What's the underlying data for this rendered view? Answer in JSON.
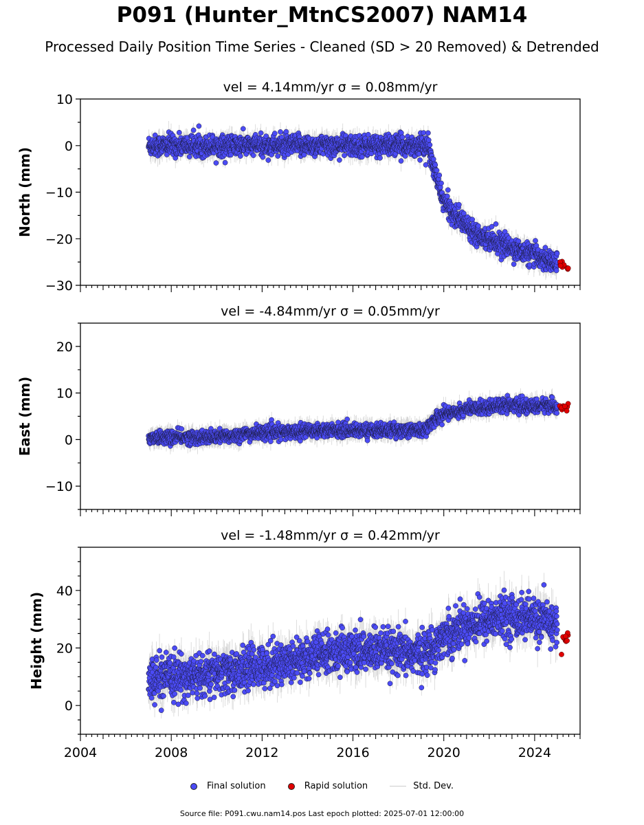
{
  "title": "P091 (Hunter_MtnCS2007) NAM14",
  "subtitle": "Processed Daily Position Time Series - Cleaned (SD > 20 Removed) & Detrended",
  "legend": {
    "final": "Final solution",
    "rapid": "Rapid solution",
    "std": "Std. Dev."
  },
  "footer": "Source file: P091.cwu.nam14.pos  Last epoch plotted: 2025-07-01 12:00:00",
  "colors": {
    "final": "#4b4bf5",
    "rapid": "#e00000",
    "std": "#c8c8c8"
  },
  "chart_data": [
    {
      "type": "scatter",
      "title": "vel = 4.14mm/yr   σ = 0.08mm/yr",
      "ylabel": "North (mm)",
      "xlim": [
        2004,
        2026
      ],
      "ylim": [
        -30,
        10
      ],
      "yticks": [
        "10",
        "0",
        "−10",
        "−20",
        "−30"
      ],
      "series": [
        {
          "name": "Final solution",
          "x": [
            2007.0,
            2008.0,
            2009.0,
            2010.0,
            2011.0,
            2012.0,
            2013.0,
            2014.0,
            2015.0,
            2016.0,
            2017.0,
            2018.0,
            2019.0,
            2019.3,
            2019.5,
            2019.8,
            2020.0,
            2020.5,
            2021.0,
            2021.5,
            2022.0,
            2022.5,
            2023.0,
            2023.5,
            2024.0,
            2024.5,
            2025.0
          ],
          "y": [
            0,
            0,
            0,
            0,
            0,
            0,
            0,
            0,
            0,
            0,
            0,
            0,
            0,
            0,
            -4,
            -9,
            -12,
            -15,
            -17,
            -19,
            -20,
            -21,
            -22,
            -23,
            -23.5,
            -24.5,
            -25.5
          ]
        },
        {
          "name": "Rapid solution",
          "x": [
            2025.1,
            2025.3,
            2025.5
          ],
          "y": [
            -25.5,
            -25.8,
            -26.0
          ]
        }
      ]
    },
    {
      "type": "scatter",
      "title": "vel = -4.84mm/yr   σ = 0.05mm/yr",
      "ylabel": "East (mm)",
      "xlim": [
        2004,
        2026
      ],
      "ylim": [
        -15,
        25
      ],
      "yticks": [
        "20",
        "10",
        "0",
        "−10"
      ],
      "series": [
        {
          "name": "Final solution",
          "x": [
            2007.0,
            2008.0,
            2009.0,
            2010.0,
            2011.0,
            2012.0,
            2013.0,
            2014.0,
            2015.0,
            2016.0,
            2017.0,
            2018.0,
            2019.0,
            2019.3,
            2019.5,
            2020.0,
            2020.5,
            2021.0,
            2022.0,
            2022.5,
            2023.0,
            2023.5,
            2024.0,
            2024.5,
            2025.0
          ],
          "y": [
            0.5,
            0.5,
            0.5,
            0.5,
            1.0,
            1.5,
            1.5,
            2.0,
            2.0,
            2.0,
            2.0,
            2.0,
            2.0,
            2.5,
            4.0,
            5.5,
            6.0,
            6.5,
            7.0,
            7.5,
            7.5,
            7.0,
            7.0,
            7.5,
            7.0
          ]
        },
        {
          "name": "Rapid solution",
          "x": [
            2025.1,
            2025.3,
            2025.5
          ],
          "y": [
            7.0,
            6.8,
            7.2
          ]
        }
      ]
    },
    {
      "type": "scatter",
      "title": "vel = -1.48mm/yr   σ = 0.42mm/yr",
      "ylabel": "Height (mm)",
      "xlim": [
        2004,
        2026
      ],
      "ylim": [
        -10,
        55
      ],
      "yticks": [
        "40",
        "20",
        "0"
      ],
      "xticks": [
        "2004",
        "2008",
        "2012",
        "2016",
        "2020",
        "2024"
      ],
      "series": [
        {
          "name": "Final solution",
          "x": [
            2007.0,
            2008.0,
            2009.0,
            2010.0,
            2011.0,
            2012.0,
            2013.0,
            2014.0,
            2015.0,
            2016.0,
            2017.0,
            2018.0,
            2019.0,
            2019.5,
            2020.0,
            2021.0,
            2022.0,
            2023.0,
            2024.0,
            2025.0
          ],
          "y": [
            8,
            10,
            10,
            11,
            12,
            14,
            15,
            17,
            18,
            19,
            19,
            18,
            18,
            20,
            24,
            28,
            30,
            31,
            30,
            28
          ]
        },
        {
          "name": "Rapid solution",
          "x": [
            2025.1,
            2025.3,
            2025.5
          ],
          "y": [
            25,
            23,
            24
          ]
        }
      ]
    }
  ]
}
